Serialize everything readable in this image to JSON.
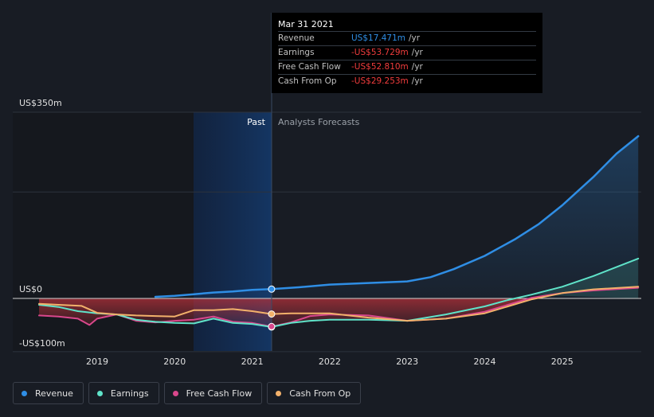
{
  "tooltip": {
    "date": "Mar 31 2021",
    "rows": [
      {
        "label": "Revenue",
        "value": "US$17.471m",
        "unit": "/yr",
        "color": "#2f8ee5"
      },
      {
        "label": "Earnings",
        "value": "-US$53.729m",
        "unit": "/yr",
        "color": "#f03c3c"
      },
      {
        "label": "Free Cash Flow",
        "value": "-US$52.810m",
        "unit": "/yr",
        "color": "#f03c3c"
      },
      {
        "label": "Cash From Op",
        "value": "-US$29.253m",
        "unit": "/yr",
        "color": "#f03c3c"
      }
    ]
  },
  "regions": {
    "past": "Past",
    "forecast": "Analysts Forecasts"
  },
  "legend": [
    {
      "label": "Revenue",
      "color": "#2f8ee5"
    },
    {
      "label": "Earnings",
      "color": "#5fe3c9"
    },
    {
      "label": "Free Cash Flow",
      "color": "#d9478c"
    },
    {
      "label": "Cash From Op",
      "color": "#f2b16b"
    }
  ],
  "chart_data": {
    "type": "line",
    "ylim": [
      -100,
      350
    ],
    "xlim": [
      2018.25,
      2025.98
    ],
    "y_tick_labels": [
      {
        "value": 350,
        "label": "US$350m"
      },
      {
        "value": 0,
        "label": "US$0"
      },
      {
        "value": -100,
        "label": "-US$100m"
      }
    ],
    "x_ticks": [
      2019,
      2020,
      2021,
      2022,
      2023,
      2024,
      2025
    ],
    "gridlines": [
      350,
      200,
      0,
      -100
    ],
    "past_start": 2020.25,
    "past_end": 2021.25,
    "series": [
      {
        "name": "Revenue",
        "color": "#2f8ee5",
        "x": [
          2019.75,
          2020.0,
          2020.25,
          2020.5,
          2020.75,
          2021.0,
          2021.25,
          2021.6,
          2022.0,
          2022.5,
          2023.0,
          2023.3,
          2023.6,
          2024.0,
          2024.4,
          2024.7,
          2025.0,
          2025.4,
          2025.7,
          2025.98
        ],
        "y": [
          3,
          5,
          8,
          11,
          13,
          16,
          17.5,
          21,
          26,
          29,
          32,
          40,
          55,
          80,
          112,
          140,
          175,
          228,
          272,
          305
        ]
      },
      {
        "name": "Earnings",
        "color": "#5fe3c9",
        "x": [
          2018.25,
          2018.5,
          2018.75,
          2019.0,
          2019.25,
          2019.5,
          2019.75,
          2020.0,
          2020.25,
          2020.5,
          2020.75,
          2021.0,
          2021.25,
          2021.5,
          2021.75,
          2022.0,
          2022.5,
          2023.0,
          2023.5,
          2024.0,
          2024.3,
          2024.6,
          2025.0,
          2025.4,
          2025.98
        ],
        "y": [
          -12,
          -16,
          -24,
          -28,
          -30,
          -40,
          -44,
          -46,
          -47,
          -38,
          -46,
          -48,
          -53.7,
          -46,
          -42,
          -40,
          -40,
          -42,
          -30,
          -15,
          -3,
          7,
          22,
          42,
          75
        ]
      },
      {
        "name": "Free Cash Flow",
        "color": "#d9478c",
        "x": [
          2018.25,
          2018.5,
          2018.75,
          2018.9,
          2019.0,
          2019.25,
          2019.5,
          2019.75,
          2020.0,
          2020.25,
          2020.5,
          2020.75,
          2021.0,
          2021.25,
          2021.5,
          2021.75,
          2022.0,
          2022.5,
          2023.0,
          2023.5,
          2024.0,
          2024.3,
          2024.6,
          2025.0,
          2025.4,
          2025.98
        ],
        "y": [
          -32,
          -34,
          -38,
          -50,
          -38,
          -30,
          -42,
          -45,
          -42,
          -40,
          -34,
          -44,
          -46,
          -52.8,
          -45,
          -33,
          -30,
          -32,
          -42,
          -38,
          -25,
          -12,
          1,
          10,
          15,
          20
        ]
      },
      {
        "name": "Cash From Op",
        "color": "#f2b16b",
        "x": [
          2018.25,
          2018.5,
          2018.8,
          2019.0,
          2019.25,
          2019.5,
          2019.75,
          2020.0,
          2020.25,
          2020.5,
          2020.75,
          2021.0,
          2021.25,
          2021.5,
          2021.75,
          2022.0,
          2022.5,
          2023.0,
          2023.5,
          2024.0,
          2024.3,
          2024.6,
          2025.0,
          2025.4,
          2025.98
        ],
        "y": [
          -10,
          -12,
          -14,
          -27,
          -30,
          -32,
          -33,
          -34,
          -22,
          -22,
          -20,
          -24,
          -29.3,
          -28,
          -28,
          -28,
          -36,
          -42,
          -38,
          -28,
          -15,
          -2,
          10,
          17,
          22
        ]
      }
    ]
  }
}
